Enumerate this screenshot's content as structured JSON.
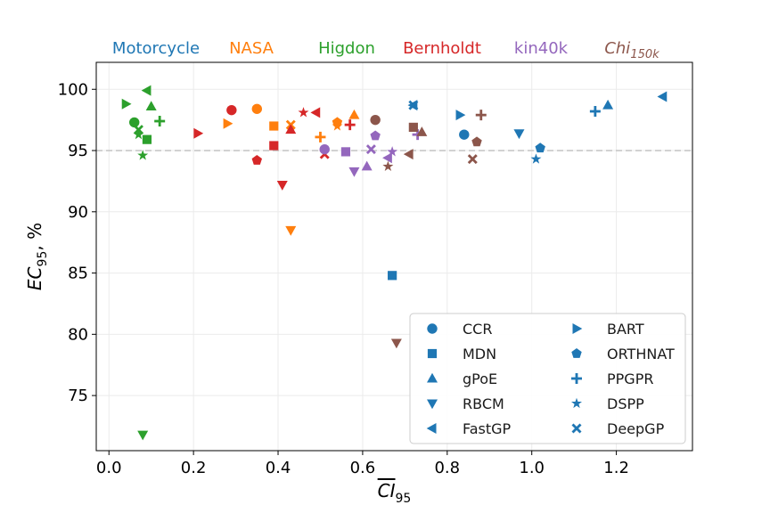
{
  "chart_data": {
    "type": "scatter",
    "xlabel": "CI",
    "xlabel_sub": "95",
    "ylabel": "EC",
    "ylabel_sub": "95",
    "ylabel_suffix": ", %",
    "xlim": [
      -0.03,
      1.38
    ],
    "ylim": [
      70.5,
      102.2
    ],
    "x_ticks": [
      0.0,
      0.2,
      0.4,
      0.6,
      0.8,
      1.0,
      1.2
    ],
    "x_tick_labels": [
      "0.0",
      "0.2",
      "0.4",
      "0.6",
      "0.8",
      "1.0",
      "1.2"
    ],
    "y_ticks": [
      75,
      80,
      85,
      90,
      95,
      100
    ],
    "y_tick_labels": [
      "75",
      "80",
      "85",
      "90",
      "95",
      "100"
    ],
    "reference_line": 95,
    "grid": true,
    "legend_location": "lower-right",
    "datasets": [
      {
        "name": "Motorcycle",
        "sub": "",
        "color": "#1f77b4"
      },
      {
        "name": "NASA",
        "sub": "",
        "color": "#ff7f0e"
      },
      {
        "name": "Higdon",
        "sub": "",
        "color": "#2ca02c"
      },
      {
        "name": "Bernholdt",
        "sub": "",
        "color": "#d62728"
      },
      {
        "name": "kin40k",
        "sub": "",
        "color": "#9467bd"
      },
      {
        "name": "Chi",
        "sub": "150k",
        "color": "#8c564b",
        "italic": true
      }
    ],
    "methods": [
      {
        "name": "CCR",
        "marker": "circle"
      },
      {
        "name": "MDN",
        "marker": "square"
      },
      {
        "name": "gPoE",
        "marker": "triangle-up"
      },
      {
        "name": "RBCM",
        "marker": "triangle-down"
      },
      {
        "name": "FastGP",
        "marker": "triangle-left"
      },
      {
        "name": "BART",
        "marker": "triangle-right"
      },
      {
        "name": "ORTHNAT",
        "marker": "pentagon"
      },
      {
        "name": "PPGPR",
        "marker": "plus"
      },
      {
        "name": "DSPP",
        "marker": "star"
      },
      {
        "name": "DeepGP",
        "marker": "x"
      }
    ],
    "points": [
      {
        "dataset": "Motorcycle",
        "method": "MDN",
        "x": 0.67,
        "y": 84.8
      },
      {
        "dataset": "Motorcycle",
        "method": "FastGP",
        "x": 0.72,
        "y": 98.7
      },
      {
        "dataset": "Motorcycle",
        "method": "DeepGP",
        "x": 0.72,
        "y": 98.7
      },
      {
        "dataset": "Motorcycle",
        "method": "BART",
        "x": 0.83,
        "y": 97.9
      },
      {
        "dataset": "Motorcycle",
        "method": "CCR",
        "x": 0.84,
        "y": 96.3
      },
      {
        "dataset": "Motorcycle",
        "method": "RBCM",
        "x": 0.97,
        "y": 96.4
      },
      {
        "dataset": "Motorcycle",
        "method": "DSPP",
        "x": 1.01,
        "y": 94.3
      },
      {
        "dataset": "Motorcycle",
        "method": "ORTHNAT",
        "x": 1.02,
        "y": 95.2
      },
      {
        "dataset": "Motorcycle",
        "method": "PPGPR",
        "x": 1.15,
        "y": 98.2
      },
      {
        "dataset": "Motorcycle",
        "method": "gPoE",
        "x": 1.18,
        "y": 98.7
      },
      {
        "dataset": "Motorcycle",
        "method": "FastGP",
        "x": 1.31,
        "y": 99.4
      },
      {
        "dataset": "NASA",
        "method": "BART",
        "x": 0.28,
        "y": 97.2
      },
      {
        "dataset": "NASA",
        "method": "CCR",
        "x": 0.35,
        "y": 98.4
      },
      {
        "dataset": "NASA",
        "method": "MDN",
        "x": 0.39,
        "y": 97.0
      },
      {
        "dataset": "NASA",
        "method": "DeepGP",
        "x": 0.43,
        "y": 97.1
      },
      {
        "dataset": "NASA",
        "method": "RBCM",
        "x": 0.43,
        "y": 88.5
      },
      {
        "dataset": "NASA",
        "method": "PPGPR",
        "x": 0.5,
        "y": 96.1
      },
      {
        "dataset": "NASA",
        "method": "ORTHNAT",
        "x": 0.54,
        "y": 97.3
      },
      {
        "dataset": "NASA",
        "method": "DSPP",
        "x": 0.54,
        "y": 97.0
      },
      {
        "dataset": "NASA",
        "method": "gPoE",
        "x": 0.58,
        "y": 97.9
      },
      {
        "dataset": "Higdon",
        "method": "BART",
        "x": 0.04,
        "y": 98.8
      },
      {
        "dataset": "Higdon",
        "method": "CCR",
        "x": 0.06,
        "y": 97.3
      },
      {
        "dataset": "Higdon",
        "method": "DeepGP",
        "x": 0.07,
        "y": 96.7
      },
      {
        "dataset": "Higdon",
        "method": "DSPP",
        "x": 0.07,
        "y": 96.3
      },
      {
        "dataset": "Higdon",
        "method": "DSPP",
        "x": 0.08,
        "y": 94.6
      },
      {
        "dataset": "Higdon",
        "method": "FastGP",
        "x": 0.09,
        "y": 99.9
      },
      {
        "dataset": "Higdon",
        "method": "MDN",
        "x": 0.09,
        "y": 95.9
      },
      {
        "dataset": "Higdon",
        "method": "gPoE",
        "x": 0.1,
        "y": 98.6
      },
      {
        "dataset": "Higdon",
        "method": "PPGPR",
        "x": 0.12,
        "y": 97.4
      },
      {
        "dataset": "Higdon",
        "method": "RBCM",
        "x": 0.08,
        "y": 71.8
      },
      {
        "dataset": "Bernholdt",
        "method": "BART",
        "x": 0.21,
        "y": 96.4
      },
      {
        "dataset": "Bernholdt",
        "method": "CCR",
        "x": 0.29,
        "y": 98.3
      },
      {
        "dataset": "Bernholdt",
        "method": "ORTHNAT",
        "x": 0.35,
        "y": 94.2
      },
      {
        "dataset": "Bernholdt",
        "method": "MDN",
        "x": 0.39,
        "y": 95.4
      },
      {
        "dataset": "Bernholdt",
        "method": "RBCM",
        "x": 0.41,
        "y": 92.2
      },
      {
        "dataset": "Bernholdt",
        "method": "gPoE",
        "x": 0.43,
        "y": 96.7
      },
      {
        "dataset": "Bernholdt",
        "method": "DSPP",
        "x": 0.46,
        "y": 98.1
      },
      {
        "dataset": "Bernholdt",
        "method": "FastGP",
        "x": 0.49,
        "y": 98.1
      },
      {
        "dataset": "Bernholdt",
        "method": "DeepGP",
        "x": 0.51,
        "y": 94.7
      },
      {
        "dataset": "Bernholdt",
        "method": "PPGPR",
        "x": 0.57,
        "y": 97.1
      },
      {
        "dataset": "kin40k",
        "method": "CCR",
        "x": 0.51,
        "y": 95.1
      },
      {
        "dataset": "kin40k",
        "method": "MDN",
        "x": 0.56,
        "y": 94.9
      },
      {
        "dataset": "kin40k",
        "method": "RBCM",
        "x": 0.58,
        "y": 93.3
      },
      {
        "dataset": "kin40k",
        "method": "DeepGP",
        "x": 0.62,
        "y": 95.1
      },
      {
        "dataset": "kin40k",
        "method": "gPoE",
        "x": 0.61,
        "y": 93.7
      },
      {
        "dataset": "kin40k",
        "method": "ORTHNAT",
        "x": 0.63,
        "y": 96.2
      },
      {
        "dataset": "kin40k",
        "method": "FastGP",
        "x": 0.66,
        "y": 94.4
      },
      {
        "dataset": "kin40k",
        "method": "DSPP",
        "x": 0.67,
        "y": 94.9
      },
      {
        "dataset": "kin40k",
        "method": "PPGPR",
        "x": 0.73,
        "y": 96.3
      },
      {
        "dataset": "Chi",
        "method": "CCR",
        "x": 0.63,
        "y": 97.5
      },
      {
        "dataset": "Chi",
        "method": "DSPP",
        "x": 0.66,
        "y": 93.7
      },
      {
        "dataset": "Chi",
        "method": "RBCM",
        "x": 0.68,
        "y": 79.3
      },
      {
        "dataset": "Chi",
        "method": "FastGP",
        "x": 0.71,
        "y": 94.7
      },
      {
        "dataset": "Chi",
        "method": "MDN",
        "x": 0.72,
        "y": 96.9
      },
      {
        "dataset": "Chi",
        "method": "gPoE",
        "x": 0.74,
        "y": 96.5
      },
      {
        "dataset": "Chi",
        "method": "DeepGP",
        "x": 0.86,
        "y": 94.3
      },
      {
        "dataset": "Chi",
        "method": "ORTHNAT",
        "x": 0.87,
        "y": 95.7
      },
      {
        "dataset": "Chi",
        "method": "PPGPR",
        "x": 0.88,
        "y": 97.9
      }
    ]
  }
}
